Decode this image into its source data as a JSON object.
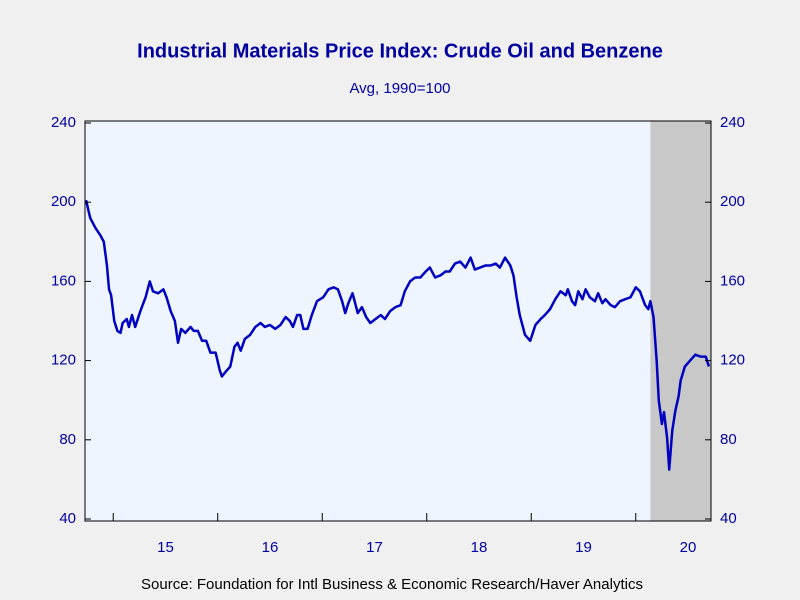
{
  "chart_data": {
    "type": "line",
    "title": "Industrial Materials Price Index: Crude Oil and Benzene",
    "subtitle": "Avg, 1990=100",
    "source": "Source:  Foundation for Intl Business & Economic Research/Haver Analytics",
    "x": [
      2014.74,
      2014.78,
      2014.83,
      2014.88,
      2014.91,
      2014.94,
      2014.96,
      2014.98,
      2015.01,
      2015.04,
      2015.07,
      2015.09,
      2015.13,
      2015.15,
      2015.18,
      2015.21,
      2015.26,
      2015.31,
      2015.35,
      2015.38,
      2015.43,
      2015.48,
      2015.51,
      2015.55,
      2015.59,
      2015.62,
      2015.65,
      2015.69,
      2015.74,
      2015.77,
      2015.81,
      2015.85,
      2015.89,
      2015.93,
      2015.98,
      2016.02,
      2016.04,
      2016.07,
      2016.12,
      2016.16,
      2016.19,
      2016.22,
      2016.26,
      2016.31,
      2016.36,
      2016.41,
      2016.45,
      2016.5,
      2016.55,
      2016.6,
      2016.65,
      2016.69,
      2016.72,
      2016.76,
      2016.79,
      2016.82,
      2016.86,
      2016.9,
      2016.95,
      2017.01,
      2017.06,
      2017.11,
      2017.15,
      2017.19,
      2017.22,
      2017.25,
      2017.29,
      2017.32,
      2017.34,
      2017.38,
      2017.42,
      2017.46,
      2017.51,
      2017.56,
      2017.6,
      2017.65,
      2017.7,
      2017.75,
      2017.79,
      2017.84,
      2017.89,
      2017.94,
      2017.99,
      2018.03,
      2018.08,
      2018.13,
      2018.18,
      2018.22,
      2018.27,
      2018.32,
      2018.37,
      2018.42,
      2018.46,
      2018.51,
      2018.56,
      2018.61,
      2018.66,
      2018.7,
      2018.75,
      2018.8,
      2018.83,
      2018.86,
      2018.89,
      2018.94,
      2018.99,
      2019.04,
      2019.09,
      2019.13,
      2019.18,
      2019.23,
      2019.28,
      2019.33,
      2019.35,
      2019.39,
      2019.42,
      2019.45,
      2019.49,
      2019.52,
      2019.56,
      2019.61,
      2019.64,
      2019.68,
      2019.71,
      2019.76,
      2019.8,
      2019.85,
      2019.9,
      2019.95,
      2020.0,
      2020.04,
      2020.09,
      2020.12,
      2020.14,
      2020.17,
      2020.2,
      2020.22,
      2020.25,
      2020.27,
      2020.3,
      2020.32,
      2020.35,
      2020.38,
      2020.41,
      2020.43,
      2020.47,
      2020.52,
      2020.57,
      2020.62,
      2020.67,
      2020.7
    ],
    "series": [
      {
        "color": "#0000c0",
        "values": [
          201,
          192,
          187,
          183,
          180,
          168,
          156,
          153,
          140,
          135,
          134,
          139,
          141,
          137,
          143,
          137,
          145,
          152,
          160,
          155,
          154,
          156,
          152,
          145,
          140,
          129,
          136,
          134,
          137,
          135,
          135,
          130,
          130,
          124,
          124,
          115,
          112,
          114,
          117,
          127,
          129,
          125,
          131,
          133,
          137,
          139,
          137,
          138,
          136,
          138,
          142,
          140,
          137,
          143,
          143,
          136,
          136,
          143,
          150,
          152,
          156,
          157,
          156,
          150,
          144,
          149,
          154,
          148,
          144,
          147,
          142,
          139,
          141,
          143,
          141,
          145,
          147,
          148,
          155,
          160,
          162,
          162,
          165,
          167,
          162,
          163,
          165,
          165,
          169,
          170,
          167,
          172,
          166,
          167,
          168,
          168,
          169,
          167,
          172,
          168,
          163,
          152,
          143,
          133,
          130,
          138,
          141,
          143,
          146,
          151,
          155,
          153,
          156,
          150,
          148,
          155,
          151,
          156,
          152,
          150,
          154,
          149,
          151,
          148,
          147,
          150,
          151,
          152,
          157,
          155,
          148,
          146,
          150,
          142,
          120,
          100,
          88,
          94,
          81,
          65,
          85,
          95,
          102,
          110,
          117,
          120,
          123,
          122,
          122,
          117
        ]
      }
    ],
    "shading": [
      {
        "start": 2020.14,
        "end": 2020.72,
        "color": "#c8c8c8"
      }
    ],
    "xlim": [
      2014.73,
      2020.72
    ],
    "xticks": [
      {
        "value": 2015,
        "label": "15"
      },
      {
        "value": 2016,
        "label": "16"
      },
      {
        "value": 2017,
        "label": "17"
      },
      {
        "value": 2018,
        "label": "18"
      },
      {
        "value": 2019,
        "label": "19"
      },
      {
        "value": 2020,
        "label": "20"
      }
    ],
    "ylim": [
      40,
      240
    ],
    "yticks": [
      40,
      80,
      120,
      160,
      200,
      240
    ],
    "y2lim": [
      40,
      240
    ],
    "y2ticks": [
      40,
      80,
      120,
      160,
      200,
      240
    ]
  }
}
